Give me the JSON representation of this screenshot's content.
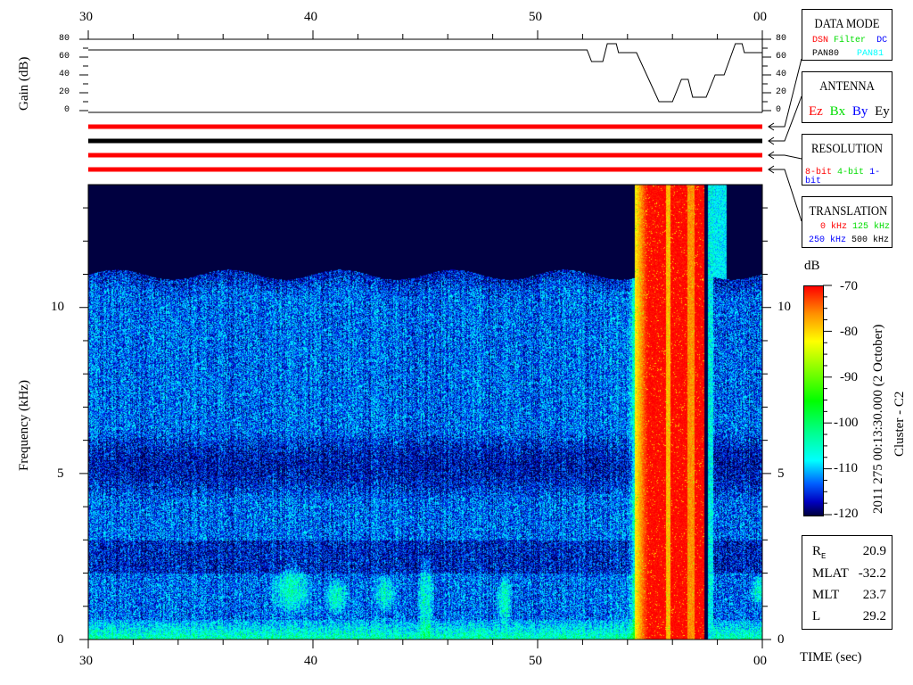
{
  "chart_data": {
    "type": "heatmap",
    "xlabel": "TIME (sec)",
    "ylabel": "Frequency (kHz)",
    "x_ticks": [
      "30",
      "40",
      "50",
      "00"
    ],
    "x_range": [
      30,
      60
    ],
    "y_ticks": [
      "0",
      "5",
      "10"
    ],
    "y_range": [
      0,
      13.7
    ],
    "colorbar": {
      "label": "dB",
      "ticks": [
        "-70",
        "-80",
        "-90",
        "-100",
        "-110",
        "-120"
      ],
      "range": [
        -120,
        -70
      ]
    },
    "gain": {
      "ylabel": "Gain (dB)",
      "y_ticks": [
        "80",
        "60",
        "40",
        "20",
        "0"
      ],
      "y_range": [
        0,
        80
      ],
      "points": [
        [
          30,
          68
        ],
        [
          52.2,
          68
        ],
        [
          52.4,
          55
        ],
        [
          52.9,
          55
        ],
        [
          53.1,
          75
        ],
        [
          53.5,
          75
        ],
        [
          53.6,
          65
        ],
        [
          54.4,
          65
        ],
        [
          55.4,
          10
        ],
        [
          56.0,
          10
        ],
        [
          56.4,
          35
        ],
        [
          56.7,
          35
        ],
        [
          56.9,
          15
        ],
        [
          57.5,
          15
        ],
        [
          57.9,
          40
        ],
        [
          58.3,
          40
        ],
        [
          58.8,
          75
        ],
        [
          59.1,
          75
        ],
        [
          59.2,
          65
        ],
        [
          60,
          65
        ]
      ]
    },
    "mode_bars": {
      "data_mode": "#ff0000",
      "antenna": "#000000",
      "resolution": "#ff0000",
      "translation": "#ff0000"
    },
    "features": "broadband background below ~11 kHz; intense burst 54.3-57.3 s; data gap near 57.5 s"
  },
  "timestamp": "2011 275 00:13:30.000 (2 October)",
  "spacecraft": "Cluster - C2",
  "data_mode": {
    "title": "DATA MODE",
    "items": [
      {
        "text": "DSN",
        "color": "#ff0000"
      },
      {
        "text": "Filter",
        "color": "#00dd00"
      },
      {
        "text": "DC",
        "color": "#0000ff"
      },
      {
        "text": "PAN80",
        "color": "#000000"
      },
      {
        "text": "PAN81",
        "color": "#00ffff"
      }
    ]
  },
  "antenna": {
    "title": "ANTENNA",
    "items": [
      {
        "text": "Ez",
        "color": "#ff0000"
      },
      {
        "text": "Bx",
        "color": "#00dd00"
      },
      {
        "text": "By",
        "color": "#0000ff"
      },
      {
        "text": "Ey",
        "color": "#000000"
      }
    ]
  },
  "resolution": {
    "title": "RESOLUTION",
    "items": [
      {
        "text": "8-bit",
        "color": "#ff0000"
      },
      {
        "text": "4-bit",
        "color": "#00dd00"
      },
      {
        "text": "1-bit",
        "color": "#0000ff"
      }
    ]
  },
  "translation": {
    "title": "TRANSLATION",
    "items": [
      {
        "text": "0 kHz",
        "color": "#ff0000"
      },
      {
        "text": "125 kHz",
        "color": "#00dd00"
      },
      {
        "text": "250 kHz",
        "color": "#0000ff"
      },
      {
        "text": "500 kHz",
        "color": "#000000"
      }
    ]
  },
  "info": [
    {
      "label": "R",
      "sub": "E",
      "value": "20.9"
    },
    {
      "label": "MLAT",
      "value": "-32.2"
    },
    {
      "label": "MLT",
      "value": "23.7"
    },
    {
      "label": "L",
      "value": "29.2"
    }
  ]
}
